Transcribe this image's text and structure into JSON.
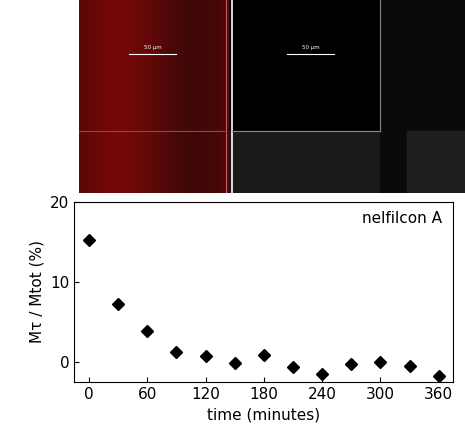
{
  "chart_data": {
    "type": "scatter",
    "annotations": [
      "nelfilcon A"
    ],
    "x_label": "time (minutes)",
    "y_label": "Mτ / Mtot (%)",
    "x": [
      0,
      30,
      60,
      90,
      120,
      150,
      180,
      210,
      240,
      270,
      300,
      330,
      360
    ],
    "values": [
      15.2,
      7.2,
      3.8,
      1.2,
      0.7,
      -0.1,
      0.8,
      -0.6,
      -1.5,
      -0.3,
      0.0,
      -0.5,
      -1.8
    ],
    "color": "#000000",
    "marker": "diamond",
    "xlim": [
      -15,
      375
    ],
    "xticks": [
      0,
      60,
      120,
      180,
      240,
      300,
      360
    ],
    "ylim": [
      -2.5,
      20
    ],
    "yticks": [
      0,
      10,
      20
    ],
    "grid": false
  },
  "image_panels": {
    "scale_bar_labels": [
      "50 µm",
      "50 µm"
    ]
  }
}
